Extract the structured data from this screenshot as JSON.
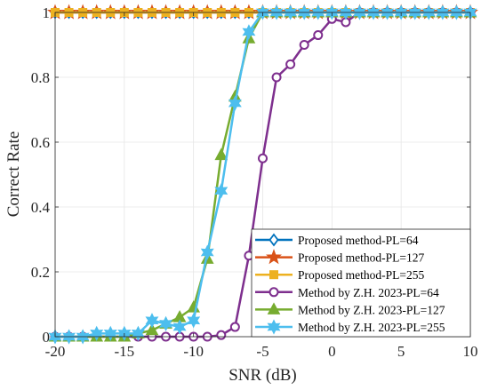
{
  "chart_data": {
    "type": "line",
    "xlabel": "SNR (dB)",
    "ylabel": "Correct Rate",
    "xlim": [
      -20,
      10
    ],
    "ylim": [
      0,
      1
    ],
    "xticks": [
      -20,
      -15,
      -10,
      -5,
      0,
      5,
      10
    ],
    "yticks": [
      0,
      0.2,
      0.4,
      0.6,
      0.8,
      1
    ],
    "xtick_labels": [
      "-20",
      "-15",
      "-10",
      "-5",
      "0",
      "5",
      "10"
    ],
    "ytick_labels": [
      "0",
      "0.2",
      "0.4",
      "0.6",
      "0.8",
      "1"
    ],
    "grid": true,
    "legend_position": "bottom-right",
    "x": [
      -20,
      -19,
      -18,
      -17,
      -16,
      -15,
      -14,
      -13,
      -12,
      -11,
      -10,
      -9,
      -8,
      -7,
      -6,
      -5,
      -4,
      -3,
      -2,
      -1,
      0,
      1,
      2,
      3,
      4,
      5,
      6,
      7,
      8,
      9,
      10
    ],
    "series": [
      {
        "name": "Proposed method-PL=64",
        "color": "#0072BD",
        "marker": "diamond",
        "x": [
          -20,
          -19,
          -18,
          -17,
          -16,
          -15,
          -14,
          -13,
          -12,
          -11,
          -10,
          -9,
          -8,
          -7,
          -6,
          -5,
          -4,
          -3,
          -2,
          -1,
          0,
          1,
          2,
          3,
          4,
          5,
          6,
          7,
          8,
          9,
          10
        ],
        "values": [
          1,
          1,
          1,
          1,
          1,
          1,
          1,
          1,
          1,
          1,
          1,
          1,
          1,
          1,
          1,
          1,
          1,
          1,
          1,
          1,
          1,
          1,
          1,
          1,
          1,
          1,
          1,
          1,
          1,
          1,
          1
        ]
      },
      {
        "name": "Proposed method-PL=127",
        "color": "#D95319",
        "marker": "star",
        "x": [
          -20,
          -19,
          -18,
          -17,
          -16,
          -15,
          -14,
          -13,
          -12,
          -11,
          -10,
          -9,
          -8,
          -7,
          -6,
          -5,
          -4,
          -3,
          -2,
          -1,
          0,
          1,
          2,
          3,
          4,
          5,
          6,
          7,
          8,
          9,
          10
        ],
        "values": [
          1,
          1,
          1,
          1,
          1,
          1,
          1,
          1,
          1,
          1,
          1,
          1,
          1,
          1,
          1,
          1,
          1,
          1,
          1,
          1,
          1,
          1,
          1,
          1,
          1,
          1,
          1,
          1,
          1,
          1,
          1
        ]
      },
      {
        "name": "Proposed method-PL=255",
        "color": "#EDB120",
        "marker": "square",
        "x": [
          -20,
          -19,
          -18,
          -17,
          -16,
          -15,
          -14,
          -13,
          -12,
          -11,
          -10,
          -9,
          -8,
          -7,
          -6,
          -5,
          -4,
          -3,
          -2,
          -1,
          0,
          1,
          2,
          3,
          4,
          5,
          6,
          7,
          8,
          9,
          10
        ],
        "values": [
          1,
          1,
          1,
          1,
          1,
          1,
          1,
          1,
          1,
          1,
          1,
          1,
          1,
          1,
          1,
          1,
          1,
          1,
          1,
          1,
          1,
          1,
          1,
          1,
          1,
          1,
          1,
          1,
          1,
          1,
          1
        ]
      },
      {
        "name": "Method by Z.H. 2023-PL=64",
        "color": "#7E2F8E",
        "marker": "circle",
        "x": [
          -20,
          -19,
          -18,
          -17,
          -16,
          -15,
          -14,
          -13,
          -12,
          -11,
          -10,
          -9,
          -8,
          -7,
          -6,
          -5,
          -4,
          -3,
          -2,
          -1,
          0,
          1,
          2,
          3,
          4,
          5,
          6,
          7,
          8,
          9,
          10
        ],
        "values": [
          0,
          0,
          0,
          0,
          0,
          0,
          0,
          0,
          0,
          0,
          0,
          0,
          0.005,
          0.03,
          0.25,
          0.55,
          0.8,
          0.84,
          0.9,
          0.93,
          0.98,
          0.97,
          1,
          1,
          1,
          1,
          1,
          1,
          1,
          1,
          1
        ]
      },
      {
        "name": "Method by Z.H. 2023-PL=127",
        "color": "#77AC30",
        "marker": "triangle",
        "x": [
          -20,
          -19,
          -18,
          -17,
          -16,
          -15,
          -14,
          -13,
          -12,
          -11,
          -10,
          -9,
          -8,
          -7,
          -6,
          -5,
          -4,
          -3,
          -2,
          -1,
          0,
          1,
          2,
          3,
          4,
          5,
          6,
          7,
          8,
          9,
          10
        ],
        "values": [
          0,
          0,
          0,
          0,
          0,
          0,
          0.01,
          0.02,
          0.04,
          0.06,
          0.09,
          0.24,
          0.56,
          0.74,
          0.92,
          1,
          1,
          1,
          1,
          1,
          1,
          1,
          1,
          1,
          1,
          1,
          1,
          1,
          1,
          1,
          1
        ]
      },
      {
        "name": "Method by Z.H. 2023-PL=255",
        "color": "#4DBEEE",
        "marker": "hexagram",
        "x": [
          -20,
          -19,
          -18,
          -17,
          -16,
          -15,
          -14,
          -13,
          -12,
          -11,
          -10,
          -9,
          -8,
          -7,
          -6,
          -5,
          -4,
          -3,
          -2,
          -1,
          0,
          1,
          2,
          3,
          4,
          5,
          6,
          7,
          8,
          9,
          10
        ],
        "values": [
          0,
          0,
          0,
          0.01,
          0.01,
          0.01,
          0.01,
          0.05,
          0.04,
          0.03,
          0.05,
          0.26,
          0.45,
          0.72,
          0.94,
          1,
          1,
          1,
          1,
          1,
          1,
          1,
          1,
          1,
          1,
          1,
          1,
          1,
          1,
          1,
          1
        ]
      }
    ]
  }
}
